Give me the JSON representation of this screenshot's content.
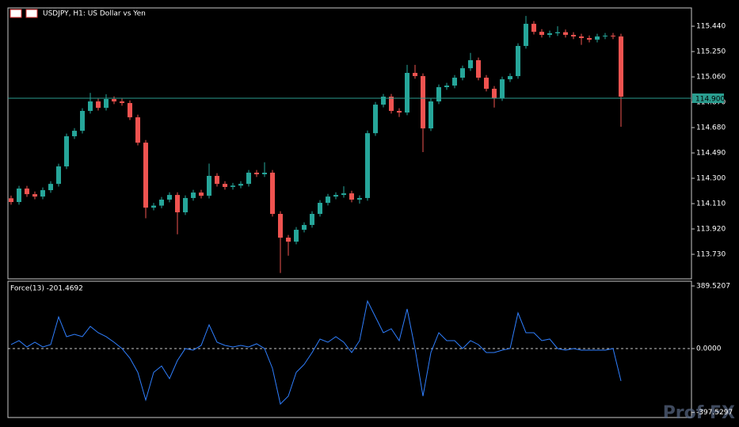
{
  "chart_data": [
    {
      "type": "candlestick",
      "title": "USDJPY, H1:  US Dollar vs Yen",
      "up_color": "#26a69a",
      "down_color": "#ef5350",
      "ylim": [
        113.546,
        115.577
      ],
      "yticks": [
        {
          "value": 115.44,
          "label": "115.440"
        },
        {
          "value": 115.25,
          "label": "115.250"
        },
        {
          "value": 115.06,
          "label": "115.060"
        },
        {
          "value": 114.87,
          "label": "114.870"
        },
        {
          "value": 114.68,
          "label": "114.680"
        },
        {
          "value": 114.49,
          "label": "114.490"
        },
        {
          "value": 114.3,
          "label": "114.300"
        },
        {
          "value": 114.11,
          "label": "114.110"
        },
        {
          "value": 113.92,
          "label": "113.920"
        },
        {
          "value": 113.73,
          "label": "113.730"
        }
      ],
      "price_line": {
        "value": 114.9,
        "label": "114.900",
        "color": "#2a9d8f"
      },
      "open": [
        114.15,
        114.122,
        114.223,
        114.181,
        114.163,
        114.211,
        114.258,
        114.389,
        114.615,
        114.656,
        114.805,
        114.876,
        114.828,
        114.894,
        114.876,
        114.864,
        114.757,
        114.567,
        114.08,
        114.095,
        114.14,
        114.175,
        114.045,
        114.152,
        114.193,
        114.169,
        114.318,
        114.258,
        114.235,
        114.245,
        114.258,
        114.342,
        114.33,
        114.342,
        114.033,
        113.855,
        113.825,
        113.914,
        113.95,
        114.033,
        114.116,
        114.163,
        114.175,
        114.187,
        114.14,
        114.152,
        114.638,
        114.852,
        114.912,
        114.805,
        114.793,
        115.09,
        115.066,
        114.674,
        114.876,
        114.983,
        114.995,
        115.054,
        115.125,
        115.185,
        115.054,
        114.971,
        114.9,
        115.042,
        115.066,
        115.292,
        115.458,
        115.398,
        115.375,
        115.387,
        115.395,
        115.375,
        115.363,
        115.351,
        115.339,
        115.363,
        115.369,
        115.363
      ],
      "high": [
        114.17,
        114.243,
        114.243,
        114.201,
        114.231,
        114.278,
        114.409,
        114.635,
        114.676,
        114.825,
        114.94,
        114.896,
        114.93,
        114.914,
        114.896,
        114.884,
        114.777,
        114.587,
        114.115,
        114.16,
        114.195,
        114.195,
        114.172,
        114.213,
        114.213,
        114.41,
        114.338,
        114.278,
        114.265,
        114.278,
        114.362,
        114.362,
        114.42,
        114.362,
        114.053,
        113.875,
        113.934,
        113.97,
        114.053,
        114.136,
        114.183,
        114.195,
        114.24,
        114.207,
        114.172,
        114.658,
        114.872,
        114.932,
        114.932,
        114.825,
        115.15,
        115.15,
        115.086,
        114.896,
        115.003,
        115.015,
        115.074,
        115.145,
        115.24,
        115.205,
        115.074,
        114.991,
        115.062,
        115.086,
        115.312,
        115.517,
        115.478,
        115.418,
        115.407,
        115.44,
        115.415,
        115.395,
        115.383,
        115.371,
        115.383,
        115.389,
        115.389,
        115.383
      ],
      "low": [
        114.102,
        114.102,
        114.161,
        114.143,
        114.143,
        114.191,
        114.238,
        114.369,
        114.595,
        114.636,
        114.785,
        114.808,
        114.808,
        114.856,
        114.844,
        114.737,
        114.547,
        114.0,
        114.06,
        114.075,
        114.12,
        113.88,
        114.025,
        114.132,
        114.149,
        114.149,
        114.238,
        114.215,
        114.215,
        114.225,
        114.238,
        114.31,
        114.31,
        114.013,
        113.59,
        113.72,
        113.805,
        113.894,
        113.93,
        114.013,
        114.096,
        114.143,
        114.155,
        114.12,
        114.11,
        114.132,
        114.618,
        114.832,
        114.785,
        114.76,
        114.773,
        115.046,
        114.496,
        114.654,
        114.856,
        114.963,
        114.975,
        115.034,
        115.105,
        115.034,
        114.951,
        114.83,
        114.88,
        115.022,
        115.046,
        115.272,
        115.378,
        115.355,
        115.355,
        115.367,
        115.355,
        115.343,
        115.3,
        115.319,
        115.319,
        115.343,
        115.343,
        114.686
      ],
      "close": [
        114.122,
        114.223,
        114.181,
        114.163,
        114.211,
        114.258,
        114.389,
        114.615,
        114.656,
        114.805,
        114.876,
        114.828,
        114.894,
        114.876,
        114.864,
        114.757,
        114.567,
        114.08,
        114.095,
        114.14,
        114.175,
        114.045,
        114.152,
        114.193,
        114.169,
        114.318,
        114.258,
        114.235,
        114.245,
        114.258,
        114.342,
        114.33,
        114.342,
        114.033,
        113.855,
        113.825,
        113.914,
        113.95,
        114.033,
        114.116,
        114.163,
        114.175,
        114.187,
        114.14,
        114.152,
        114.638,
        114.852,
        114.912,
        114.805,
        114.793,
        115.09,
        115.066,
        114.674,
        114.876,
        114.983,
        114.995,
        115.054,
        115.125,
        115.185,
        115.054,
        114.971,
        114.9,
        115.042,
        115.066,
        115.292,
        115.458,
        115.398,
        115.375,
        115.387,
        115.395,
        115.375,
        115.363,
        115.351,
        115.339,
        115.363,
        115.369,
        115.363,
        114.912
      ]
    },
    {
      "type": "line",
      "title": "Force(13) -201.4692",
      "color": "#2f7fff",
      "zero_line": true,
      "ylim": [
        -429,
        419
      ],
      "yticks": [
        389.5207,
        {
          "value": 0,
          "label": "0.0000"
        },
        -397.5297
      ],
      "values": [
        24.7,
        49.3,
        9.9,
        39.4,
        9.9,
        24.7,
        197.2,
        74.0,
        88.7,
        74.0,
        138.0,
        98.6,
        74.0,
        39.4,
        0,
        -59.2,
        -147.9,
        -320.4,
        -147.9,
        -108.5,
        -187.3,
        -74.0,
        0,
        -9.9,
        19.7,
        147.9,
        39.4,
        19.7,
        9.9,
        19.7,
        9.9,
        29.6,
        0,
        -123.3,
        -345.1,
        -295.8,
        -147.9,
        -98.6,
        -24.7,
        59.2,
        39.4,
        74.0,
        39.4,
        -24.7,
        49.3,
        295.8,
        197.2,
        98.6,
        123.3,
        49.3,
        246.5,
        0,
        -295.8,
        -24.7,
        98.6,
        49.3,
        49.3,
        0,
        49.3,
        24.7,
        -24.7,
        -24.7,
        -9.9,
        0,
        221.9,
        98.6,
        98.6,
        49.3,
        59.2,
        0,
        -9.9,
        0,
        -9.9,
        -9.9,
        -9.9,
        -9.9,
        0,
        -201.4692
      ]
    }
  ],
  "watermark": "Prof FX"
}
